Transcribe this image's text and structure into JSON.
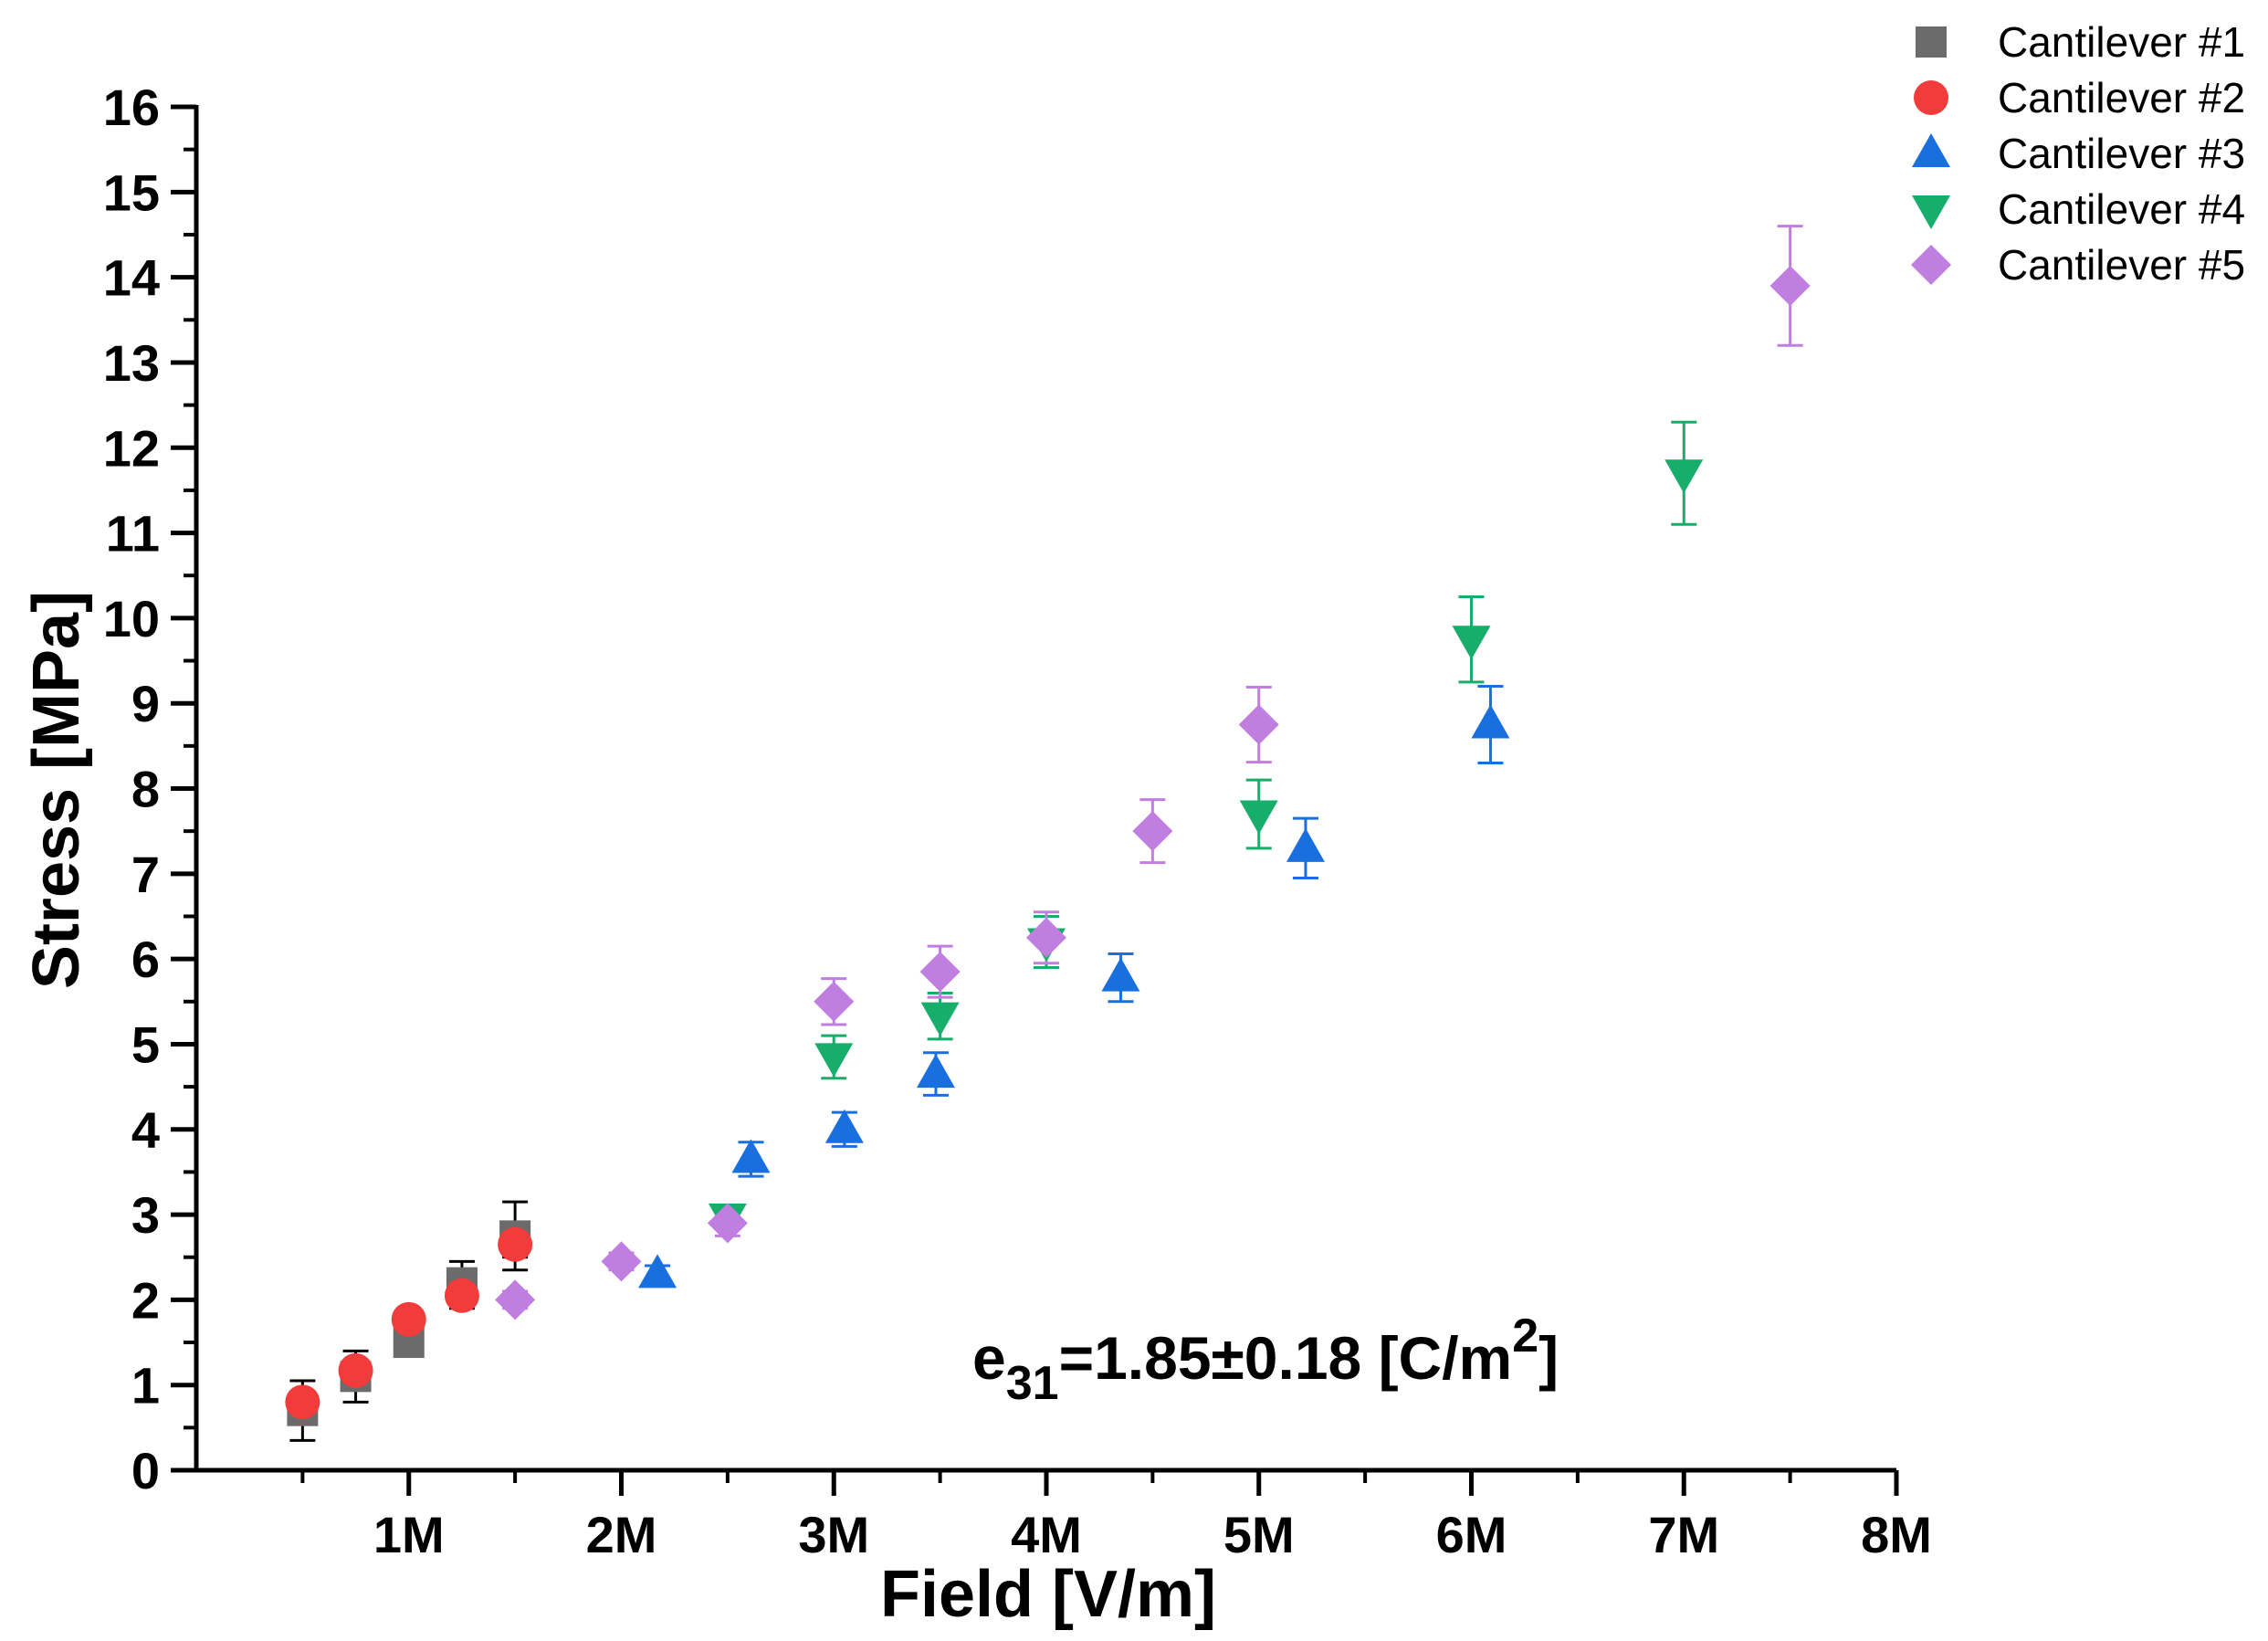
{
  "chart_data": {
    "type": "scatter",
    "title": "",
    "xlabel": "Field [V/m]",
    "ylabel": "Stress [MPa]",
    "xlim": [
      0,
      8000000
    ],
    "ylim": [
      0,
      16
    ],
    "x_ticks": [
      {
        "value": 1000000,
        "label": "1M"
      },
      {
        "value": 2000000,
        "label": "2M"
      },
      {
        "value": 3000000,
        "label": "3M"
      },
      {
        "value": 4000000,
        "label": "4M"
      },
      {
        "value": 5000000,
        "label": "5M"
      },
      {
        "value": 6000000,
        "label": "6M"
      },
      {
        "value": 7000000,
        "label": "7M"
      },
      {
        "value": 8000000,
        "label": "8M"
      }
    ],
    "y_ticks": [
      {
        "value": 0,
        "label": "0"
      },
      {
        "value": 1,
        "label": "1"
      },
      {
        "value": 2,
        "label": "2"
      },
      {
        "value": 3,
        "label": "3"
      },
      {
        "value": 4,
        "label": "4"
      },
      {
        "value": 5,
        "label": "5"
      },
      {
        "value": 6,
        "label": "6"
      },
      {
        "value": 7,
        "label": "7"
      },
      {
        "value": 8,
        "label": "8"
      },
      {
        "value": 9,
        "label": "9"
      },
      {
        "value": 10,
        "label": "10"
      },
      {
        "value": 11,
        "label": "11"
      },
      {
        "value": 12,
        "label": "12"
      },
      {
        "value": 13,
        "label": "13"
      },
      {
        "value": 14,
        "label": "14"
      },
      {
        "value": 15,
        "label": "15"
      },
      {
        "value": 16,
        "label": "16"
      }
    ],
    "legend_position": "top-right",
    "grid": false,
    "annotation": {
      "prefix": "e",
      "subscript": "31",
      "body": "=1.85±0.18 [C/m",
      "superscript": "2",
      "suffix": "]"
    },
    "series": [
      {
        "name": "Cantilever #1",
        "marker": "square",
        "color": "#6b6b6b",
        "error_color": "#000000",
        "points": [
          {
            "x": 500000,
            "y": 0.7,
            "err": 0.35
          },
          {
            "x": 750000,
            "y": 1.1,
            "err": 0.3
          },
          {
            "x": 1000000,
            "y": 1.5,
            "err": 0.15
          },
          {
            "x": 1250000,
            "y": 2.2,
            "err": 0.25
          },
          {
            "x": 1500000,
            "y": 2.75,
            "err": 0.4
          }
        ]
      },
      {
        "name": "Cantilever #2",
        "marker": "circle",
        "color": "#f23c3c",
        "error_color": "#000000",
        "points": [
          {
            "x": 500000,
            "y": 0.8,
            "err": 0.1
          },
          {
            "x": 750000,
            "y": 1.17,
            "err": 0.1
          },
          {
            "x": 1000000,
            "y": 1.77,
            "err": 0.1
          },
          {
            "x": 1250000,
            "y": 2.05,
            "err": 0.15
          },
          {
            "x": 1500000,
            "y": 2.65,
            "err": 0.15
          }
        ]
      },
      {
        "name": "Cantilever #3",
        "marker": "triangle-up",
        "color": "#1a6fdf",
        "error_color": "#1a6fdf",
        "points": [
          {
            "x": 2170000,
            "y": 2.3,
            "err": 0.1
          },
          {
            "x": 2610000,
            "y": 3.65,
            "err": 0.2
          },
          {
            "x": 3050000,
            "y": 4.0,
            "err": 0.2
          },
          {
            "x": 3480000,
            "y": 4.65,
            "err": 0.25
          },
          {
            "x": 4350000,
            "y": 5.78,
            "err": 0.28
          },
          {
            "x": 5220000,
            "y": 7.3,
            "err": 0.35
          },
          {
            "x": 6090000,
            "y": 8.75,
            "err": 0.45
          }
        ]
      },
      {
        "name": "Cantilever #4",
        "marker": "triangle-down",
        "color": "#17ad6a",
        "error_color": "#17ad6a",
        "points": [
          {
            "x": 2500000,
            "y": 2.97,
            "err": 0.12
          },
          {
            "x": 3000000,
            "y": 4.85,
            "err": 0.25
          },
          {
            "x": 3500000,
            "y": 5.33,
            "err": 0.27
          },
          {
            "x": 4000000,
            "y": 6.2,
            "err": 0.3
          },
          {
            "x": 5000000,
            "y": 7.7,
            "err": 0.4
          },
          {
            "x": 6000000,
            "y": 9.75,
            "err": 0.5
          },
          {
            "x": 7000000,
            "y": 11.7,
            "err": 0.6
          }
        ]
      },
      {
        "name": "Cantilever #5",
        "marker": "diamond",
        "color": "#c07ee0",
        "error_color": "#c07ee0",
        "points": [
          {
            "x": 1500000,
            "y": 2.0,
            "err": 0.1
          },
          {
            "x": 2000000,
            "y": 2.45,
            "err": 0.1
          },
          {
            "x": 2500000,
            "y": 2.9,
            "err": 0.15
          },
          {
            "x": 3000000,
            "y": 5.5,
            "err": 0.27
          },
          {
            "x": 3500000,
            "y": 5.85,
            "err": 0.3
          },
          {
            "x": 4000000,
            "y": 6.25,
            "err": 0.3
          },
          {
            "x": 4500000,
            "y": 7.5,
            "err": 0.37
          },
          {
            "x": 5000000,
            "y": 8.75,
            "err": 0.44
          },
          {
            "x": 7500000,
            "y": 13.9,
            "err": 0.7
          }
        ]
      }
    ]
  }
}
